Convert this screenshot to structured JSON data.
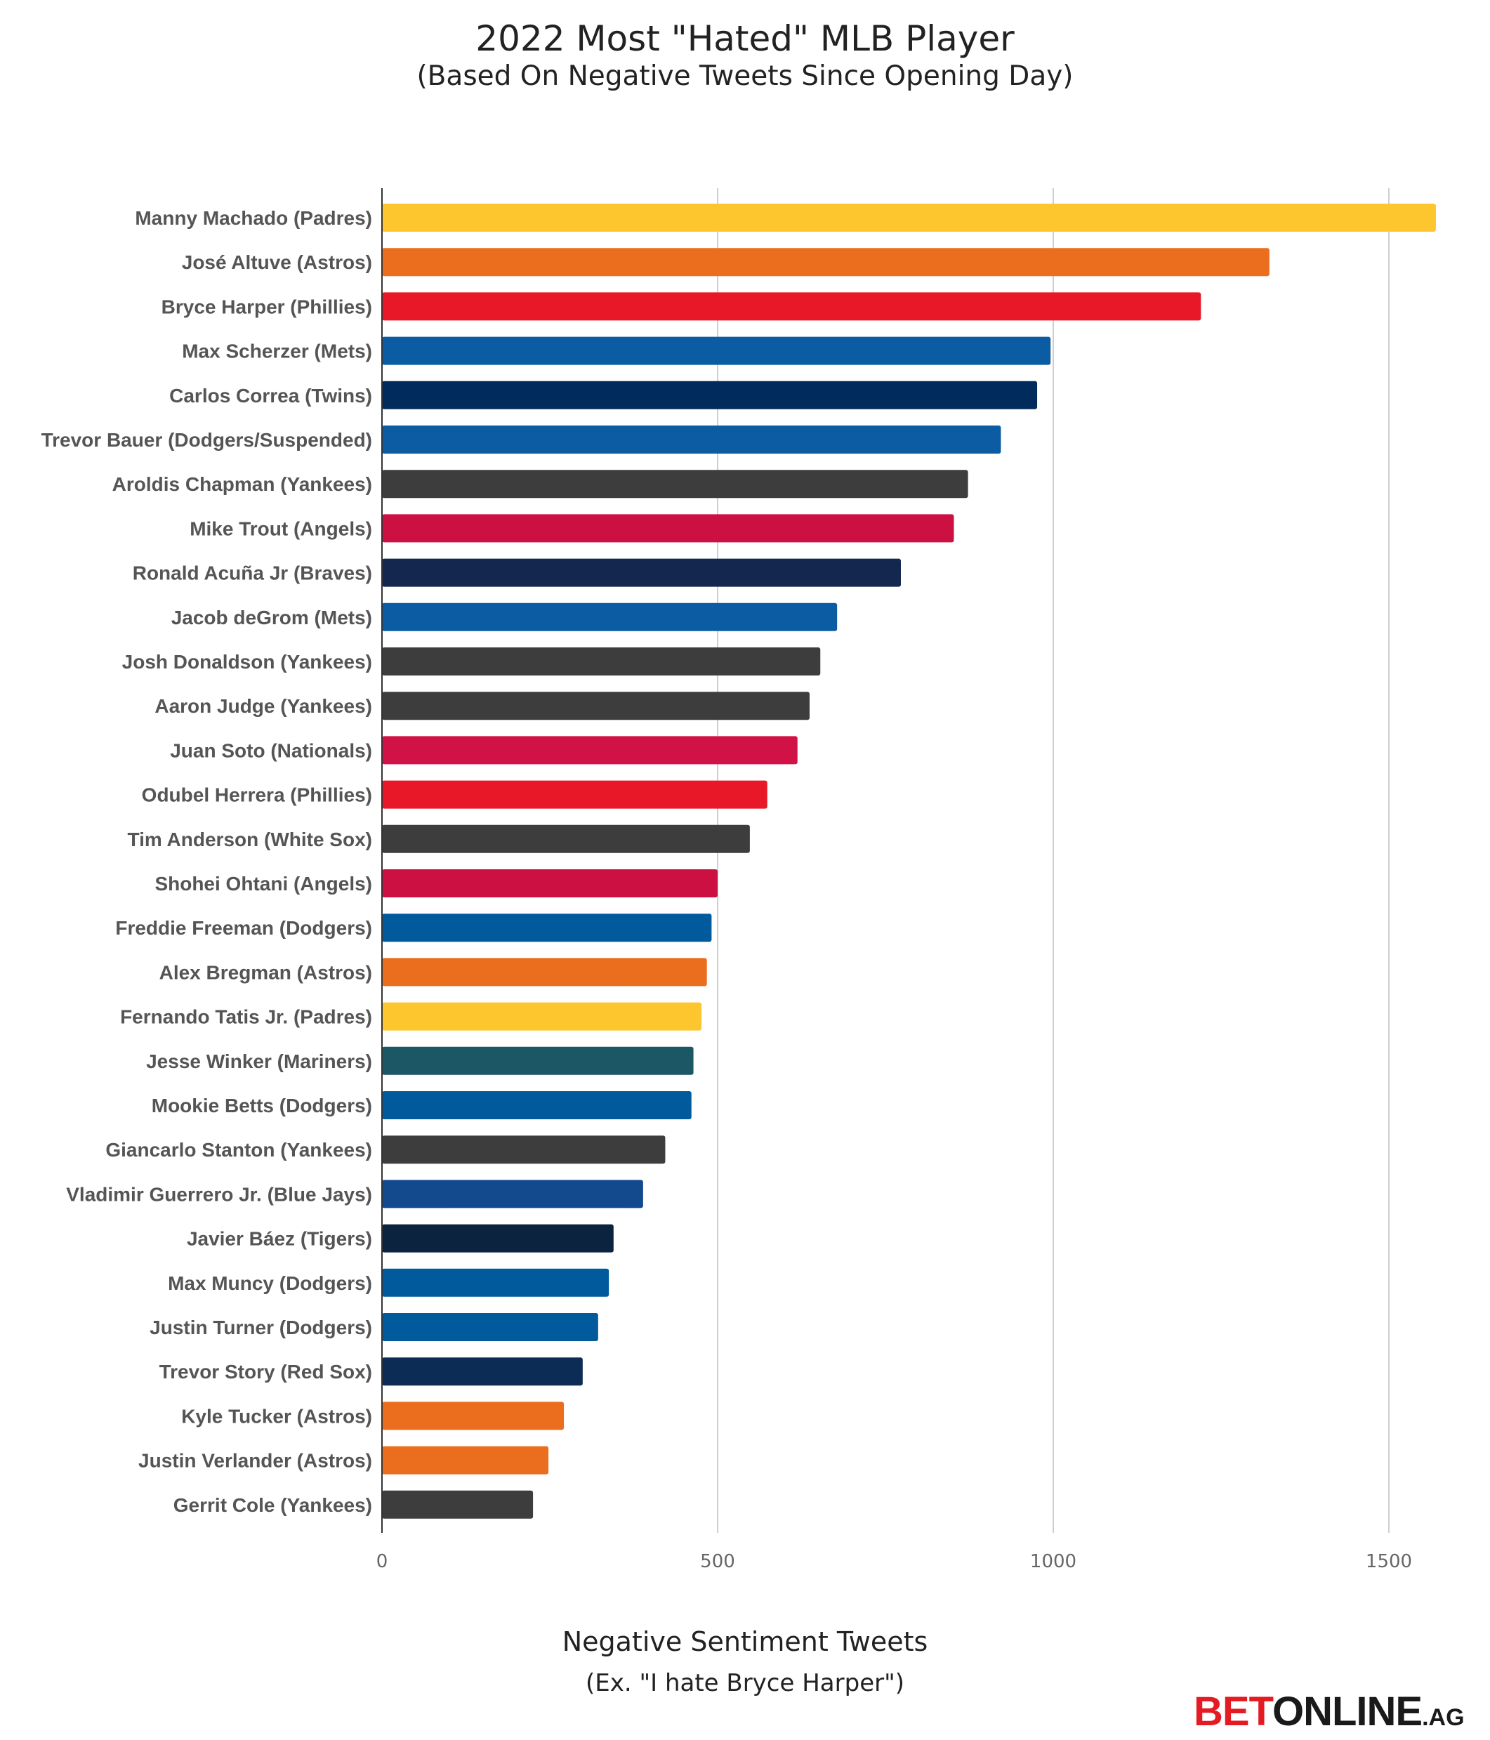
{
  "chart_data": {
    "type": "bar",
    "orientation": "horizontal",
    "title": "2022 Most \"Hated\" MLB Player",
    "subtitle": "(Based On Negative Tweets Since Opening Day)",
    "xlabel": "Negative Sentiment Tweets",
    "xsublabel": "(Ex. \"I hate Bryce Harper\")",
    "ylabel": "",
    "xlim": [
      0,
      1700
    ],
    "xticks": [
      0,
      500,
      1000,
      1500
    ],
    "grid": true,
    "categories": [
      "Manny Machado (Padres)",
      "José Altuve (Astros)",
      "Bryce Harper (Phillies)",
      "Max Scherzer (Mets)",
      "Carlos Correa (Twins)",
      "Trevor Bauer (Dodgers/Suspended)",
      "Aroldis Chapman (Yankees)",
      "Mike Trout (Angels)",
      "Ronald Acuña Jr (Braves)",
      "Jacob deGrom (Mets)",
      "Josh Donaldson (Yankees)",
      "Aaron Judge (Yankees)",
      "Juan Soto (Nationals)",
      "Odubel Herrera (Phillies)",
      "Tim Anderson (White Sox)",
      "Shohei Ohtani (Angels)",
      "Freddie Freeman (Dodgers)",
      "Alex Bregman (Astros)",
      "Fernando Tatis Jr. (Padres)",
      "Jesse Winker (Mariners)",
      "Mookie Betts (Dodgers)",
      "Giancarlo Stanton (Yankees)",
      "Vladimir Guerrero Jr. (Blue Jays)",
      "Javier Báez (Tigers)",
      "Max Muncy (Dodgers)",
      "Justin Turner (Dodgers)",
      "Trevor Story (Red Sox)",
      "Kyle Tucker (Astros)",
      "Justin Verlander (Astros)",
      "Gerrit Cole (Yankees)"
    ],
    "values": [
      1570,
      1322,
      1220,
      996,
      976,
      922,
      873,
      852,
      773,
      678,
      653,
      637,
      619,
      574,
      548,
      500,
      491,
      484,
      476,
      464,
      461,
      422,
      389,
      345,
      338,
      322,
      299,
      271,
      248,
      225
    ],
    "colors": [
      "#fec62e",
      "#eb6e1f",
      "#e81828",
      "#0b5ca2",
      "#002b5c",
      "#0b5ca2",
      "#3d3d3d",
      "#cc1142",
      "#13274f",
      "#0b5ca2",
      "#3d3d3d",
      "#3d3d3d",
      "#d11247",
      "#e81828",
      "#3d3d3d",
      "#cc1142",
      "#005a9c",
      "#eb6e1f",
      "#fec62e",
      "#1c5766",
      "#005a9c",
      "#3d3d3d",
      "#134a8e",
      "#0c2340",
      "#005a9c",
      "#005a9c",
      "#0c2c56",
      "#eb6e1f",
      "#eb6e1f",
      "#3d3d3d"
    ]
  },
  "brand": {
    "bet": "BET",
    "online": "ONLINE",
    "ag": ".AG"
  }
}
